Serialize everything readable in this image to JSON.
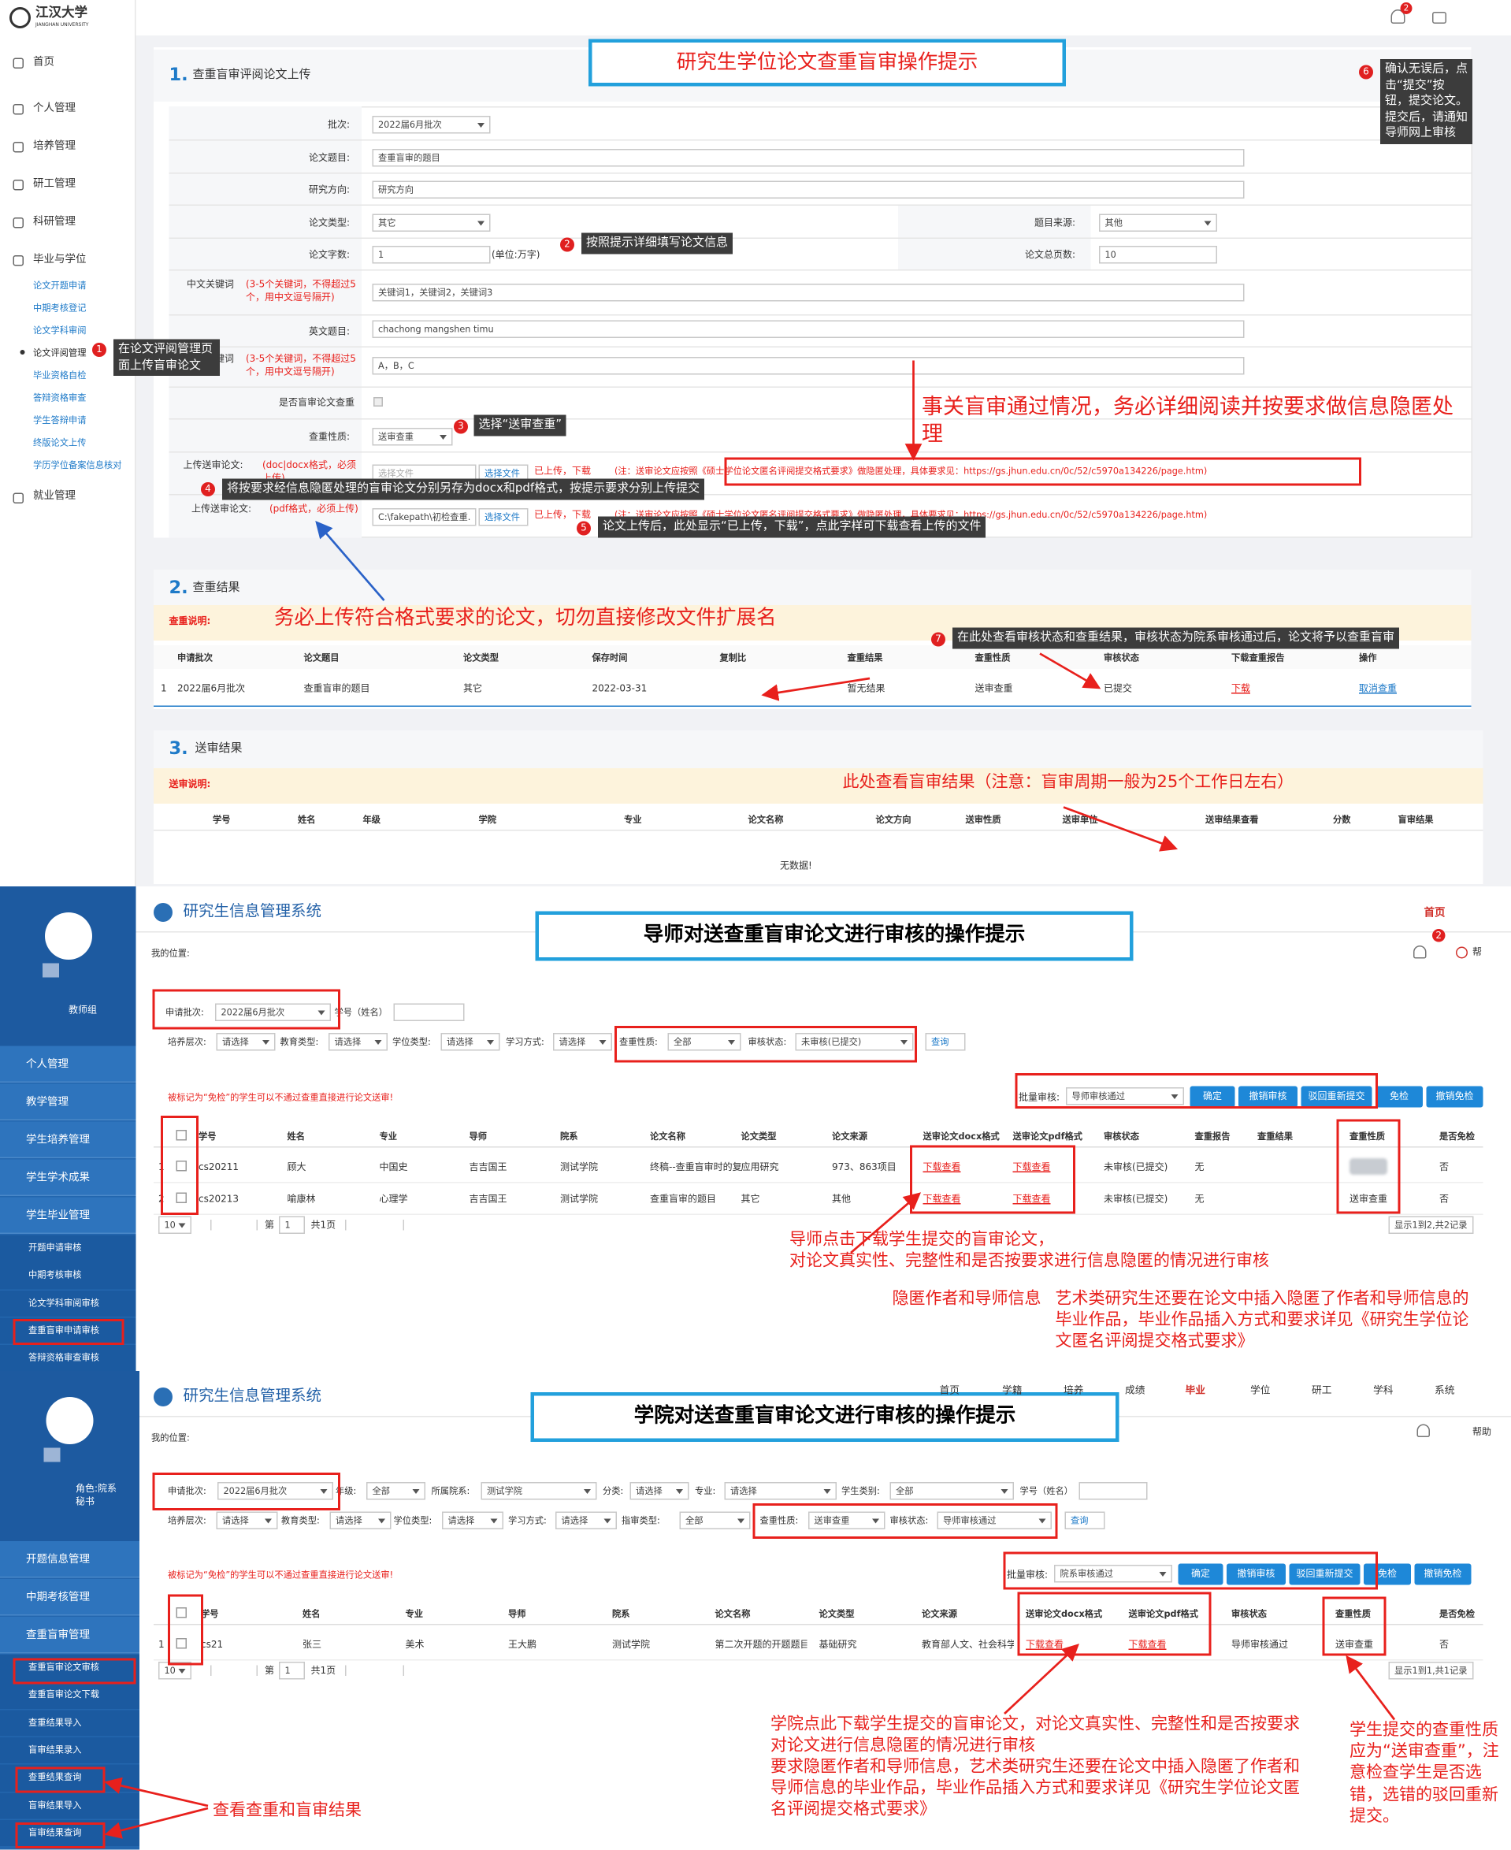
{
  "p1": {
    "logo": "江汉大学",
    "logo_en": "JIANGHAN UNIVERSITY",
    "menu": [
      "首页",
      "个人管理",
      "培养管理",
      "研工管理",
      "科研管理",
      "毕业与学位"
    ],
    "submenu": [
      "论文开题申请",
      "中期考核登记",
      "论文学科审阅",
      "论文评阅管理",
      "毕业资格自检",
      "答辩资格审查",
      "学生答辩申请",
      "终版论文上传",
      "学历学位备案信息核对"
    ],
    "menu_last": "就业管理",
    "badge": "2",
    "banner": "研究生学位论文查重盲审操作提示",
    "s1": {
      "num": "1.",
      "title": "查重盲审评阅论文上传"
    },
    "form": {
      "batch": {
        "label": "批次:",
        "value": "2022届6月批次"
      },
      "title": {
        "label": "论文题目:",
        "value": "查重盲审的题目"
      },
      "direction": {
        "label": "研究方向:",
        "value": "研究方向"
      },
      "type": {
        "label": "论文类型:",
        "value": "其它"
      },
      "source": {
        "label": "题目来源:",
        "value": "其他"
      },
      "words": {
        "label": "论文字数:",
        "value": "1",
        "unit": "(单位:万字)"
      },
      "pages": {
        "label": "论文总页数:",
        "value": "10"
      },
      "kw": {
        "label": "中文关键词",
        "hint": "(3-5个关键词，不得超过5个，用中文逗号隔开)",
        "value": "关键词1，关键词2，关键词3"
      },
      "en_title": {
        "label": "英文题目:",
        "value": "chachong mangshen timu"
      },
      "en_kw": {
        "label": "英文关键词",
        "hint": "(3-5个关键词，不得超过5个，用中文逗号隔开)",
        "value": "A，B，C"
      },
      "check": {
        "label": "是否盲审论文查重"
      },
      "nature": {
        "label": "查重性质:",
        "value": "送审查重"
      },
      "uploads": [
        {
          "label": "上传送审论文:",
          "hint": "(doc|docx格式，必须上传)",
          "file": "选择文件",
          "button": "选择文件",
          "status": "已上传，下载",
          "note": "(注：送审论文应按照《硕士学位论文匿名评阅提交格式要求》做隐匿处理，具体要求见：https://gs.jhun.edu.cn/0c/52/c5970a134226/page.htm)"
        },
        {
          "label": "上传送审论文:",
          "hint": "(pdf格式，必须上传)",
          "file": "C:\\fakepath\\初检查重.",
          "button": "选择文件",
          "status": "已上传，下载",
          "note": "(注：送审论文应按照《硕士学位论文匿名评阅提交格式要求》做隐匿处理，具体要求见：https://gs.jhun.edu.cn/0c/52/c5970a134226/page.htm)"
        }
      ]
    },
    "tips": [
      {
        "num": "1",
        "text": "在论文评阅管理页面上传盲审论文"
      },
      {
        "num": "2",
        "text": "按照提示详细填写论文信息"
      },
      {
        "num": "3",
        "text": "选择“送审查重”"
      },
      {
        "num": "4",
        "text": "将按要求经信息隐匿处理的盲审论文分别另存为docx和pdf格式，按提示要求分别上传提交"
      },
      {
        "num": "5",
        "text": "论文上传后，此处显示“已上传，下载”，点此字样可下载查看上传的文件"
      },
      {
        "num": "6",
        "text": "确认无误后，点击“提交”按钮，提交论文。提交后，请通知导师网上审核"
      },
      {
        "num": "7",
        "text": "在此处查看审核状态和查重结果，审核状态为院系审核通过后，论文将予以查重盲审"
      }
    ],
    "warning": "事关盲审通过情况，务必详细阅读并按要求做信息隐匿处理",
    "s2": {
      "num": "2.",
      "title": "查重结果",
      "note_label": "查重说明:",
      "note": "务必上传符合格式要求的论文，切勿直接修改文件扩展名",
      "headers": [
        "申请批次",
        "论文题目",
        "论文类型",
        "保存时间",
        "复制比",
        "查重结果",
        "查重性质",
        "审核状态",
        "下载查重报告",
        "操作"
      ],
      "index": "1",
      "row": [
        "2022届6月批次",
        "查重盲审的题目",
        "其它",
        "2022-03-31",
        null,
        "暂无结果",
        "送审查重",
        "已提交",
        "下载",
        "取消查重"
      ]
    },
    "s3": {
      "num": "3.",
      "title": "送审结果",
      "note_label": "送审说明:",
      "note": "此处查看盲审结果（注意：盲审周期一般为25个工作日左右）",
      "headers": [
        "学号",
        "姓名",
        "年级",
        "学院",
        "专业",
        "论文名称",
        "论文方向",
        "送审性质",
        "送审单位",
        "送审结果查看",
        "分数",
        "盲审结果"
      ],
      "empty": "无数据!"
    }
  },
  "p2": {
    "role": "教师组",
    "menu": [
      "个人管理",
      "教学管理",
      "学生培养管理",
      "学生学术成果",
      "学生毕业管理"
    ],
    "submenu": [
      "开题申请审核",
      "中期考核审核",
      "论文学科审阅审核",
      "查重盲审申请审核",
      "答辩资格审查审核"
    ],
    "system": "研究生信息管理系统",
    "home": "首页",
    "location": "我的位置:",
    "help": "帮",
    "badge": "2",
    "banner": "导师对送查重盲审论文进行审核的操作提示",
    "filters": [
      {
        "label": "申请批次:",
        "value": "2022届6月批次"
      },
      {
        "label": "学号（姓名）"
      },
      {
        "label": "培养层次:",
        "value": "请选择"
      },
      {
        "label": "教育类型:",
        "value": "请选择"
      },
      {
        "label": "学位类型:",
        "value": "请选择"
      },
      {
        "label": "学习方式:",
        "value": "请选择"
      },
      {
        "label": "查重性质:",
        "value": "全部"
      },
      {
        "label": "审核状态:",
        "value": "未审核(已提交)"
      }
    ],
    "search": "查询",
    "exempt_note": "被标记为“免检”的学生可以不通过查重直接进行论文送审!",
    "batch": {
      "label": "批量审核:",
      "value": "导师审核通过",
      "buttons": [
        "确定",
        "撤销审核",
        "驳回重新提交",
        "免检",
        "撤销免检"
      ]
    },
    "headers": [
      "学号",
      "姓名",
      "专业",
      "导师",
      "院系",
      "论文名称",
      "论文类型",
      "论文来源",
      "送审论文docx格式",
      "送审论文pdf格式",
      "审核状态",
      "查重报告",
      "查重结果",
      "查重性质",
      "是否免检"
    ],
    "index": [
      "1",
      "2"
    ],
    "rows": [
      [
        "cs20211",
        "顾大",
        "中国史",
        "吉吉国王",
        "测试学院",
        "终稿--查重盲审时的复",
        "应用研究",
        "973、863项目",
        "下载查看",
        "下载查看",
        "未审核(已提交)",
        "无",
        null,
        null,
        "否"
      ],
      [
        "cs20213",
        "喻康林",
        "心理学",
        "吉吉国王",
        "测试学院",
        "查重盲审的题目",
        "其它",
        "其他",
        "下载查看",
        "下载查看",
        "未审核(已提交)",
        "无",
        null,
        "送审查重",
        "否"
      ]
    ],
    "page_size": "10",
    "page_prefix": "第",
    "page": "1",
    "page_total": "共1页",
    "summary": "显示1到2,共2记录",
    "tips": {
      "download": [
        "导师点击下载学生提交的盲审论文，",
        "对论文真实性、完整性和是否按要求进行信息隐匿的情况进行审核"
      ],
      "hide": "隐匿作者和导师信息",
      "art": "艺术类研究生还要在论文中插入隐匿了作者和导师信息的毕业作品，毕业作品插入方式和要求详见《研究生学位论文匿名评阅提交格式要求》"
    }
  },
  "p3": {
    "role": "角色:院系秘书",
    "menu": [
      "开题信息管理",
      "中期考核管理",
      "查重盲审管理"
    ],
    "submenu": [
      "查重盲审论文审核",
      "查重盲审论文下载",
      "查重结果导入",
      "盲审结果录入",
      "查重结果查询",
      "盲审结果导入",
      "盲审结果查询"
    ],
    "system": "研究生信息管理系统",
    "nav": [
      "首页",
      "学籍",
      "培养",
      "成绩",
      "毕业",
      "学位",
      "研工",
      "学科",
      "系统"
    ],
    "location": "我的位置:",
    "help": "帮助",
    "banner": "学院对送查重盲审论文进行审核的操作提示",
    "filters": [
      {
        "label": "申请批次:",
        "value": "2022届6月批次"
      },
      {
        "label": "年级:",
        "value": "全部"
      },
      {
        "label": "所属院系:",
        "value": "测试学院"
      },
      {
        "label": "分类:",
        "value": "请选择"
      },
      {
        "label": "专业:",
        "value": "请选择"
      },
      {
        "label": "学生类别:",
        "value": "全部"
      },
      {
        "label": "学号（姓名）"
      },
      {
        "label": "培养层次:",
        "value": "请选择"
      },
      {
        "label": "教育类型:",
        "value": "请选择"
      },
      {
        "label": "学位类型:",
        "value": "请选择"
      },
      {
        "label": "学习方式:",
        "value": "请选择"
      },
      {
        "label": "指审类型:",
        "value": "全部"
      },
      {
        "label": "查重性质:",
        "value": "送审查重"
      },
      {
        "label": "审核状态:",
        "value": "导师审核通过"
      }
    ],
    "search": "查询",
    "exempt_note": "被标记为“免检”的学生可以不通过查重直接进行论文送审!",
    "batch": {
      "label": "批量审核:",
      "value": "院系审核通过",
      "buttons": [
        "确定",
        "撤销审核",
        "驳回重新提交",
        "免检",
        "撤销免检"
      ]
    },
    "headers": [
      "学号",
      "姓名",
      "专业",
      "导师",
      "院系",
      "论文名称",
      "论文类型",
      "论文来源",
      "送审论文docx格式",
      "送审论文pdf格式",
      "审核状态",
      "查重性质",
      "是否免检"
    ],
    "index": [
      "1"
    ],
    "rows": [
      [
        "cs21",
        "张三",
        "美术",
        "王大鹏",
        "测试学院",
        "第二次开题的开题题目",
        "基础研究",
        "教育部人文、社会科学",
        "下载查看",
        "下载查看",
        "导师审核通过",
        "送审查重",
        "否"
      ]
    ],
    "page_size": "10",
    "page_prefix": "第",
    "page": "1",
    "page_total": "共1页",
    "summary": "显示1到1,共1记录",
    "tips": {
      "download": [
        "学院点此下载学生提交的盲审论文，对论文真实性、完整性和是否按要求对论文进行信息隐匿的情况进行审核",
        "要求隐匿作者和导师信息，艺术类研究生还要在论文中插入隐匿了作者和导师信息的毕业作品，毕业作品插入方式和要求详见《研究生学位论文匿名评阅提交格式要求》"
      ],
      "nature": "学生提交的查重性质应为“送审查重”，注意检查学生是否选错，选错的驳回重新提交。",
      "results": "查看查重和盲审结果"
    }
  }
}
